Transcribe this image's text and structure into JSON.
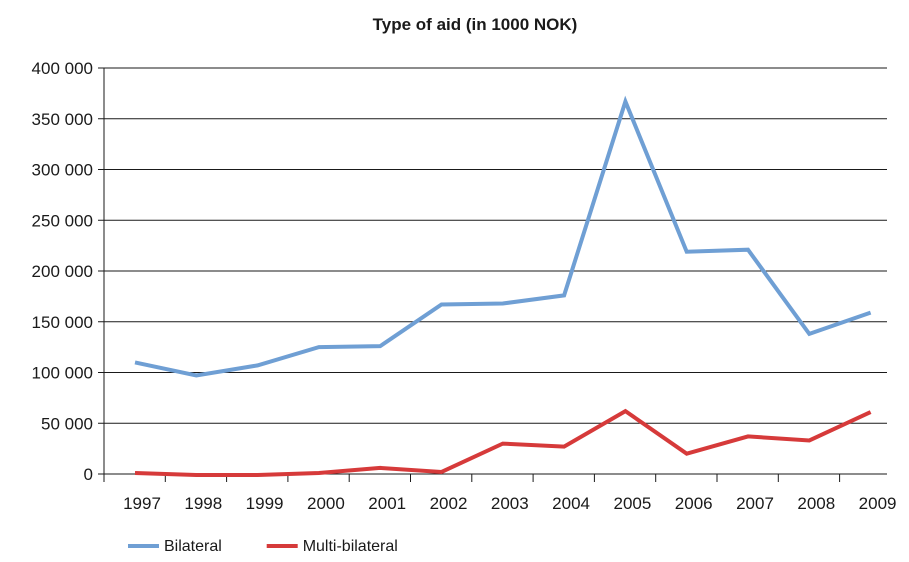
{
  "chart_data": {
    "type": "line",
    "title": "Type of aid (in 1000 NOK)",
    "xlabel": "",
    "ylabel": "",
    "categories": [
      "1997",
      "1998",
      "1999",
      "2000",
      "2001",
      "2002",
      "2003",
      "2004",
      "2005",
      "2006",
      "2007",
      "2008",
      "2009"
    ],
    "ylim": [
      0,
      400000
    ],
    "yticks": [
      0,
      50000,
      100000,
      150000,
      200000,
      250000,
      300000,
      350000,
      400000
    ],
    "ytick_labels": [
      "0",
      "50 000",
      "100 000",
      "150 000",
      "200 000",
      "250 000",
      "300 000",
      "350 000",
      "400 000"
    ],
    "grid": true,
    "legend_position": "bottom-left",
    "series": [
      {
        "name": "Bilateral",
        "color": "#6f9fd4",
        "values": [
          110000,
          97000,
          107000,
          125000,
          126000,
          167000,
          168000,
          176000,
          367000,
          219000,
          221000,
          138000,
          159000
        ]
      },
      {
        "name": "Multi-bilateral",
        "color": "#d63a3a",
        "values": [
          1000,
          -1000,
          -1000,
          1000,
          6000,
          2000,
          30000,
          27000,
          62000,
          20000,
          37000,
          33000,
          61000
        ]
      }
    ]
  }
}
